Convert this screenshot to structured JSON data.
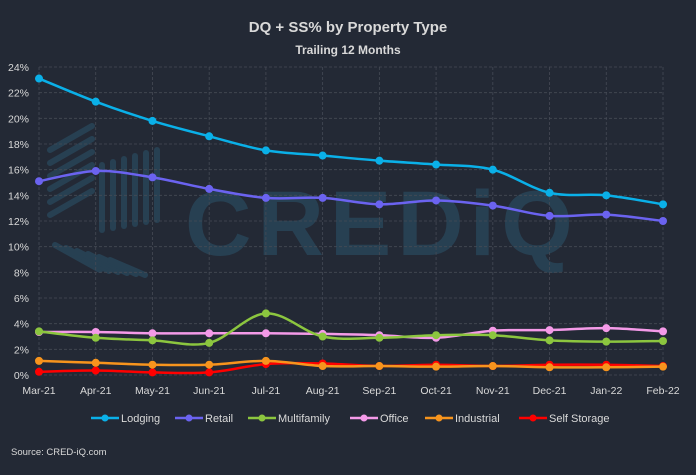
{
  "chart_data": {
    "type": "line",
    "title": "DQ + SS% by Property Type",
    "subtitle": "Trailing 12 Months",
    "xlabel": "",
    "ylabel": "",
    "categories": [
      "Mar-21",
      "Apr-21",
      "May-21",
      "Jun-21",
      "Jul-21",
      "Aug-21",
      "Sep-21",
      "Oct-21",
      "Nov-21",
      "Dec-21",
      "Jan-22",
      "Feb-22"
    ],
    "ylim": [
      0,
      24
    ],
    "yticks": [
      "0%",
      "2%",
      "4%",
      "6%",
      "8%",
      "10%",
      "12%",
      "14%",
      "16%",
      "18%",
      "20%",
      "22%",
      "24%"
    ],
    "grid": true,
    "legend_position": "bottom",
    "smoothed": true,
    "series": [
      {
        "name": "Lodging",
        "color": "#0ab0e8",
        "values": [
          23.1,
          21.3,
          19.8,
          18.6,
          17.5,
          17.1,
          16.7,
          16.4,
          16.0,
          14.2,
          14.0,
          13.3
        ]
      },
      {
        "name": "Retail",
        "color": "#6b63f0",
        "values": [
          15.1,
          15.9,
          15.4,
          14.5,
          13.8,
          13.8,
          13.3,
          13.6,
          13.2,
          12.4,
          12.5,
          12.0
        ]
      },
      {
        "name": "Multifamily",
        "color": "#8cc63f",
        "values": [
          3.4,
          2.9,
          2.7,
          2.5,
          4.8,
          3.0,
          2.9,
          3.1,
          3.1,
          2.7,
          2.6,
          2.65
        ]
      },
      {
        "name": "Office",
        "color": "#f49ae8",
        "values": [
          3.35,
          3.35,
          3.25,
          3.25,
          3.25,
          3.2,
          3.1,
          2.9,
          3.45,
          3.5,
          3.65,
          3.4
        ]
      },
      {
        "name": "Industrial",
        "color": "#f7941d",
        "values": [
          1.1,
          0.95,
          0.8,
          0.8,
          1.1,
          0.7,
          0.7,
          0.65,
          0.7,
          0.6,
          0.6,
          0.65
        ]
      },
      {
        "name": "Self Storage",
        "color": "#ff0000",
        "values": [
          0.25,
          0.35,
          0.2,
          0.2,
          0.85,
          0.9,
          0.7,
          0.8,
          0.7,
          0.8,
          0.8,
          0.7
        ]
      }
    ]
  },
  "source": "Source: CRED-iQ.com",
  "watermark": "CREDiQ",
  "colors": {
    "background": "#232935",
    "grid": "#3d4250",
    "text": "#d9d9d9"
  }
}
